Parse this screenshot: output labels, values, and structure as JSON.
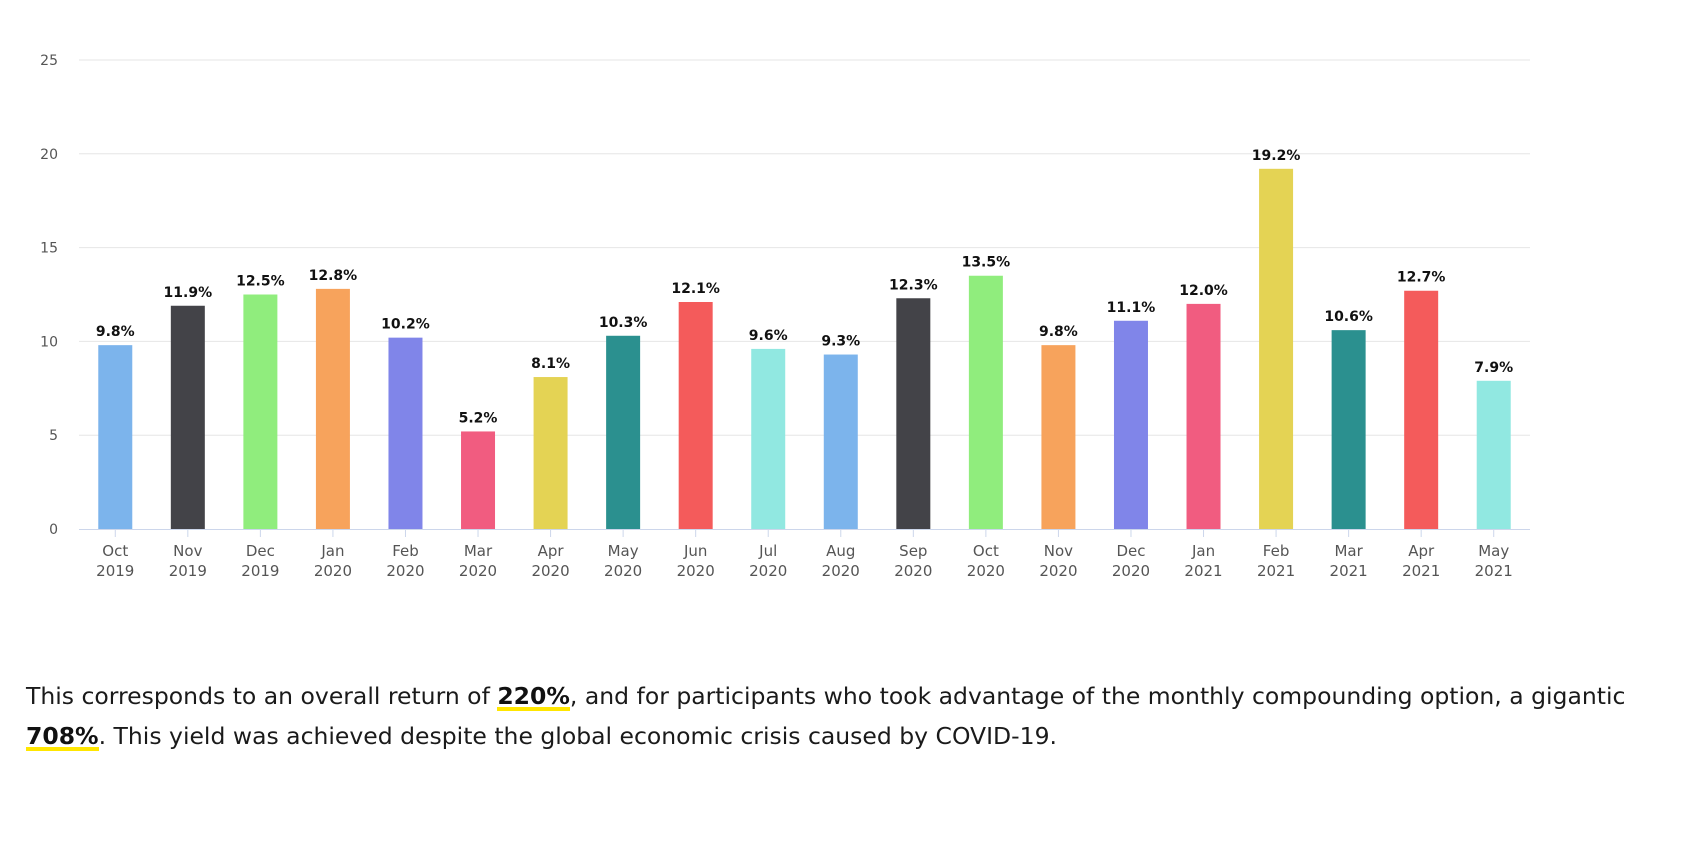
{
  "chart_data": {
    "type": "bar",
    "title": "",
    "xlabel": "",
    "ylabel": "",
    "ylim": [
      0,
      25
    ],
    "yticks": [
      0,
      5,
      10,
      15,
      20,
      25
    ],
    "grid": true,
    "legend": "none",
    "categories": [
      [
        "Oct",
        "2019"
      ],
      [
        "Nov",
        "2019"
      ],
      [
        "Dec",
        "2019"
      ],
      [
        "Jan",
        "2020"
      ],
      [
        "Feb",
        "2020"
      ],
      [
        "Mar",
        "2020"
      ],
      [
        "Apr",
        "2020"
      ],
      [
        "May",
        "2020"
      ],
      [
        "Jun",
        "2020"
      ],
      [
        "Jul",
        "2020"
      ],
      [
        "Aug",
        "2020"
      ],
      [
        "Sep",
        "2020"
      ],
      [
        "Oct",
        "2020"
      ],
      [
        "Nov",
        "2020"
      ],
      [
        "Dec",
        "2020"
      ],
      [
        "Jan",
        "2021"
      ],
      [
        "Feb",
        "2021"
      ],
      [
        "Mar",
        "2021"
      ],
      [
        "Apr",
        "2021"
      ],
      [
        "May",
        "2021"
      ]
    ],
    "values": [
      9.8,
      11.9,
      12.5,
      12.8,
      10.2,
      5.2,
      8.1,
      10.3,
      12.1,
      9.6,
      9.3,
      12.3,
      13.5,
      9.8,
      11.1,
      12.0,
      19.2,
      10.6,
      12.7,
      7.9
    ],
    "data_labels": [
      "9.8%",
      "11.9%",
      "12.5%",
      "12.8%",
      "10.2%",
      "5.2%",
      "8.1%",
      "10.3%",
      "12.1%",
      "9.6%",
      "9.3%",
      "12.3%",
      "13.5%",
      "9.8%",
      "11.1%",
      "12.0%",
      "19.2%",
      "10.6%",
      "12.7%",
      "7.9%"
    ],
    "colors": [
      "#7cb4ec",
      "#434348",
      "#90ed7d",
      "#f7a35c",
      "#8085e9",
      "#f15c80",
      "#e4d354",
      "#2b908f",
      "#f45b5b",
      "#91e8e1",
      "#7cb4ec",
      "#434348",
      "#90ed7d",
      "#f7a35c",
      "#8085e9",
      "#f15c80",
      "#e4d354",
      "#2b908f",
      "#f45b5b",
      "#91e8e1"
    ]
  },
  "caption": {
    "part1": "This corresponds to an overall return of ",
    "highlight1": "220%",
    "part2": ", and for participants who took advantage of the monthly compounding option, a gigantic ",
    "highlight2": "708%",
    "part3": ". This yield was achieved despite the global economic crisis caused by COVID-19."
  }
}
